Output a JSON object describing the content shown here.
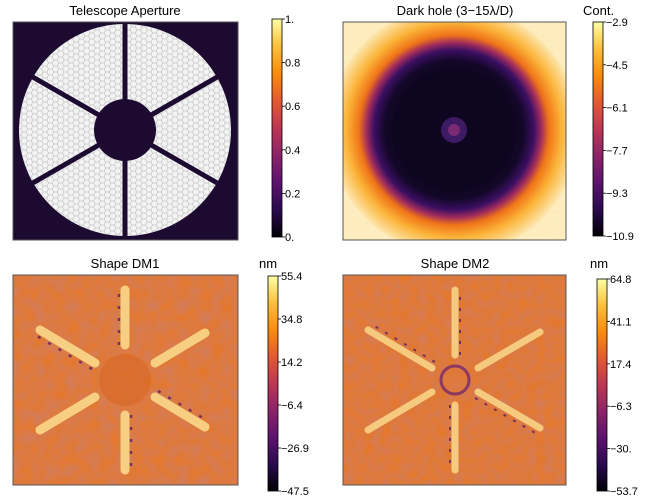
{
  "chart_data": [
    {
      "type": "heatmap",
      "title": "Telescope Aperture",
      "colorbar": {
        "label": "",
        "ticks": [
          "1.",
          "0.8",
          "0.6",
          "0.4",
          "0.2",
          "0."
        ],
        "range": [
          0,
          1
        ]
      },
      "content": "segmented hexagonal primary mirror, central obscuration, six spider vanes"
    },
    {
      "type": "heatmap",
      "title": "Dark hole (3−15λ/D)",
      "colorbar": {
        "label": "Cont.",
        "ticks": [
          "−2.9",
          "−4.5",
          "−6.1",
          "−7.7",
          "−9.3",
          "−10.9"
        ],
        "range": [
          -10.9,
          -2.9
        ]
      }
    },
    {
      "type": "heatmap",
      "title": "Shape DM1",
      "colorbar": {
        "label": "nm",
        "ticks": [
          "55.4",
          "34.8",
          "14.2",
          "−6.4",
          "−26.9",
          "−47.5"
        ],
        "range": [
          -47.5,
          55.4
        ]
      }
    },
    {
      "type": "heatmap",
      "title": "Shape DM2",
      "colorbar": {
        "label": "nm",
        "ticks": [
          "64.8",
          "41.1",
          "17.4",
          "−6.3",
          "−30.",
          "−53.7"
        ],
        "range": [
          -53.7,
          64.8
        ]
      }
    }
  ],
  "colors": {
    "colormap": [
      "#000004",
      "#2a0a4e",
      "#5c136e",
      "#8c2369",
      "#bc3754",
      "#e35932",
      "#f98c0a",
      "#fbbf3c",
      "#fcffa4"
    ],
    "mirror_fill": "#f3f3f3",
    "mirror_grid": "#b0b0b0"
  }
}
